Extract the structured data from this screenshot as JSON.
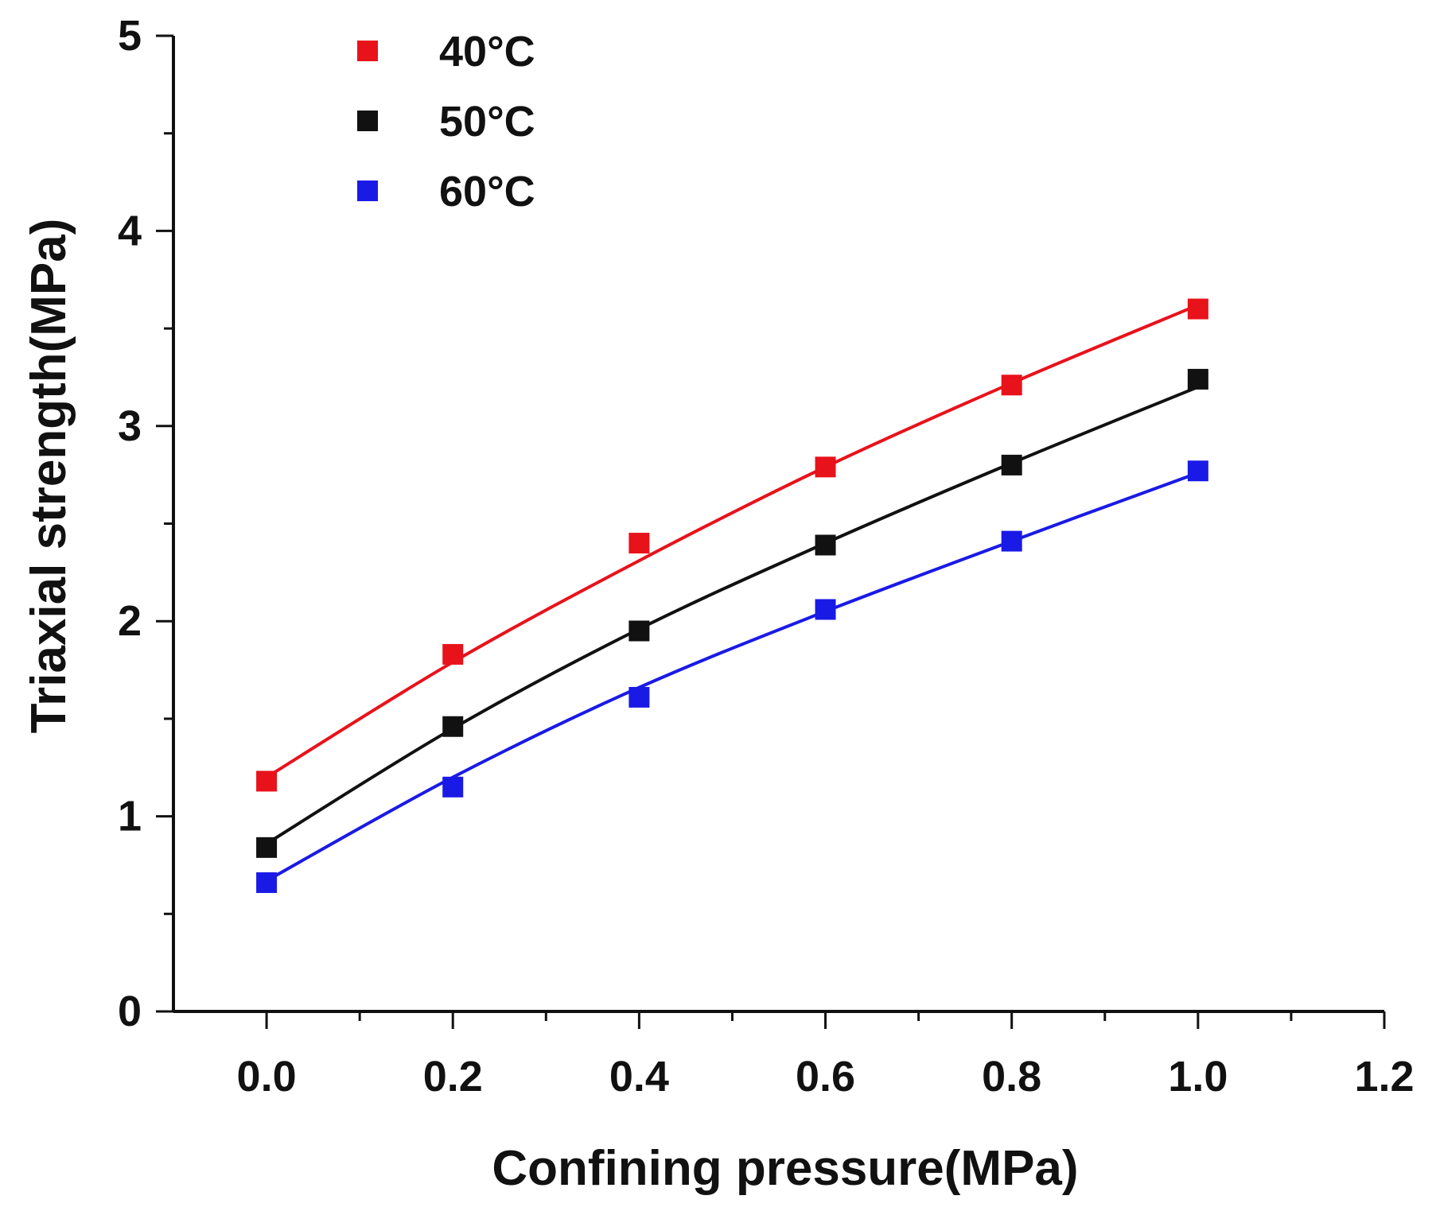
{
  "chart_data": {
    "type": "scatter",
    "title": "",
    "xlabel": "Confining pressure(MPa)",
    "ylabel": "Triaxial strength(MPa)",
    "xlim": [
      -0.1,
      1.2
    ],
    "ylim": [
      0,
      5
    ],
    "x_ticks": [
      0.0,
      0.2,
      0.4,
      0.6,
      0.8,
      1.0,
      1.2
    ],
    "x_tick_labels": [
      "0.0",
      "0.2",
      "0.4",
      "0.6",
      "0.8",
      "1.0",
      "1.2"
    ],
    "y_ticks": [
      0,
      1,
      2,
      3,
      4,
      5
    ],
    "y_tick_labels": [
      "0",
      "1",
      "2",
      "3",
      "4",
      "5"
    ],
    "grid": false,
    "legend_position": "top-left",
    "fit": "smooth curve through each series",
    "x": [
      0.0,
      0.2,
      0.4,
      0.6,
      0.8,
      1.0
    ],
    "series": [
      {
        "name": "40°C",
        "color": "#e8121b",
        "values": [
          1.18,
          1.83,
          2.4,
          2.79,
          3.21,
          3.6
        ],
        "fit_curve": [
          1.2,
          1.79,
          2.31,
          2.79,
          3.22,
          3.62
        ]
      },
      {
        "name": "50°C",
        "color": "#111111",
        "values": [
          0.84,
          1.46,
          1.95,
          2.39,
          2.8,
          3.24
        ],
        "fit_curve": [
          0.86,
          1.45,
          1.96,
          2.4,
          2.81,
          3.2
        ]
      },
      {
        "name": "60°C",
        "color": "#1a1ae6",
        "values": [
          0.66,
          1.15,
          1.61,
          2.06,
          2.41,
          2.77
        ],
        "fit_curve": [
          0.67,
          1.2,
          1.66,
          2.05,
          2.41,
          2.76
        ]
      }
    ]
  }
}
